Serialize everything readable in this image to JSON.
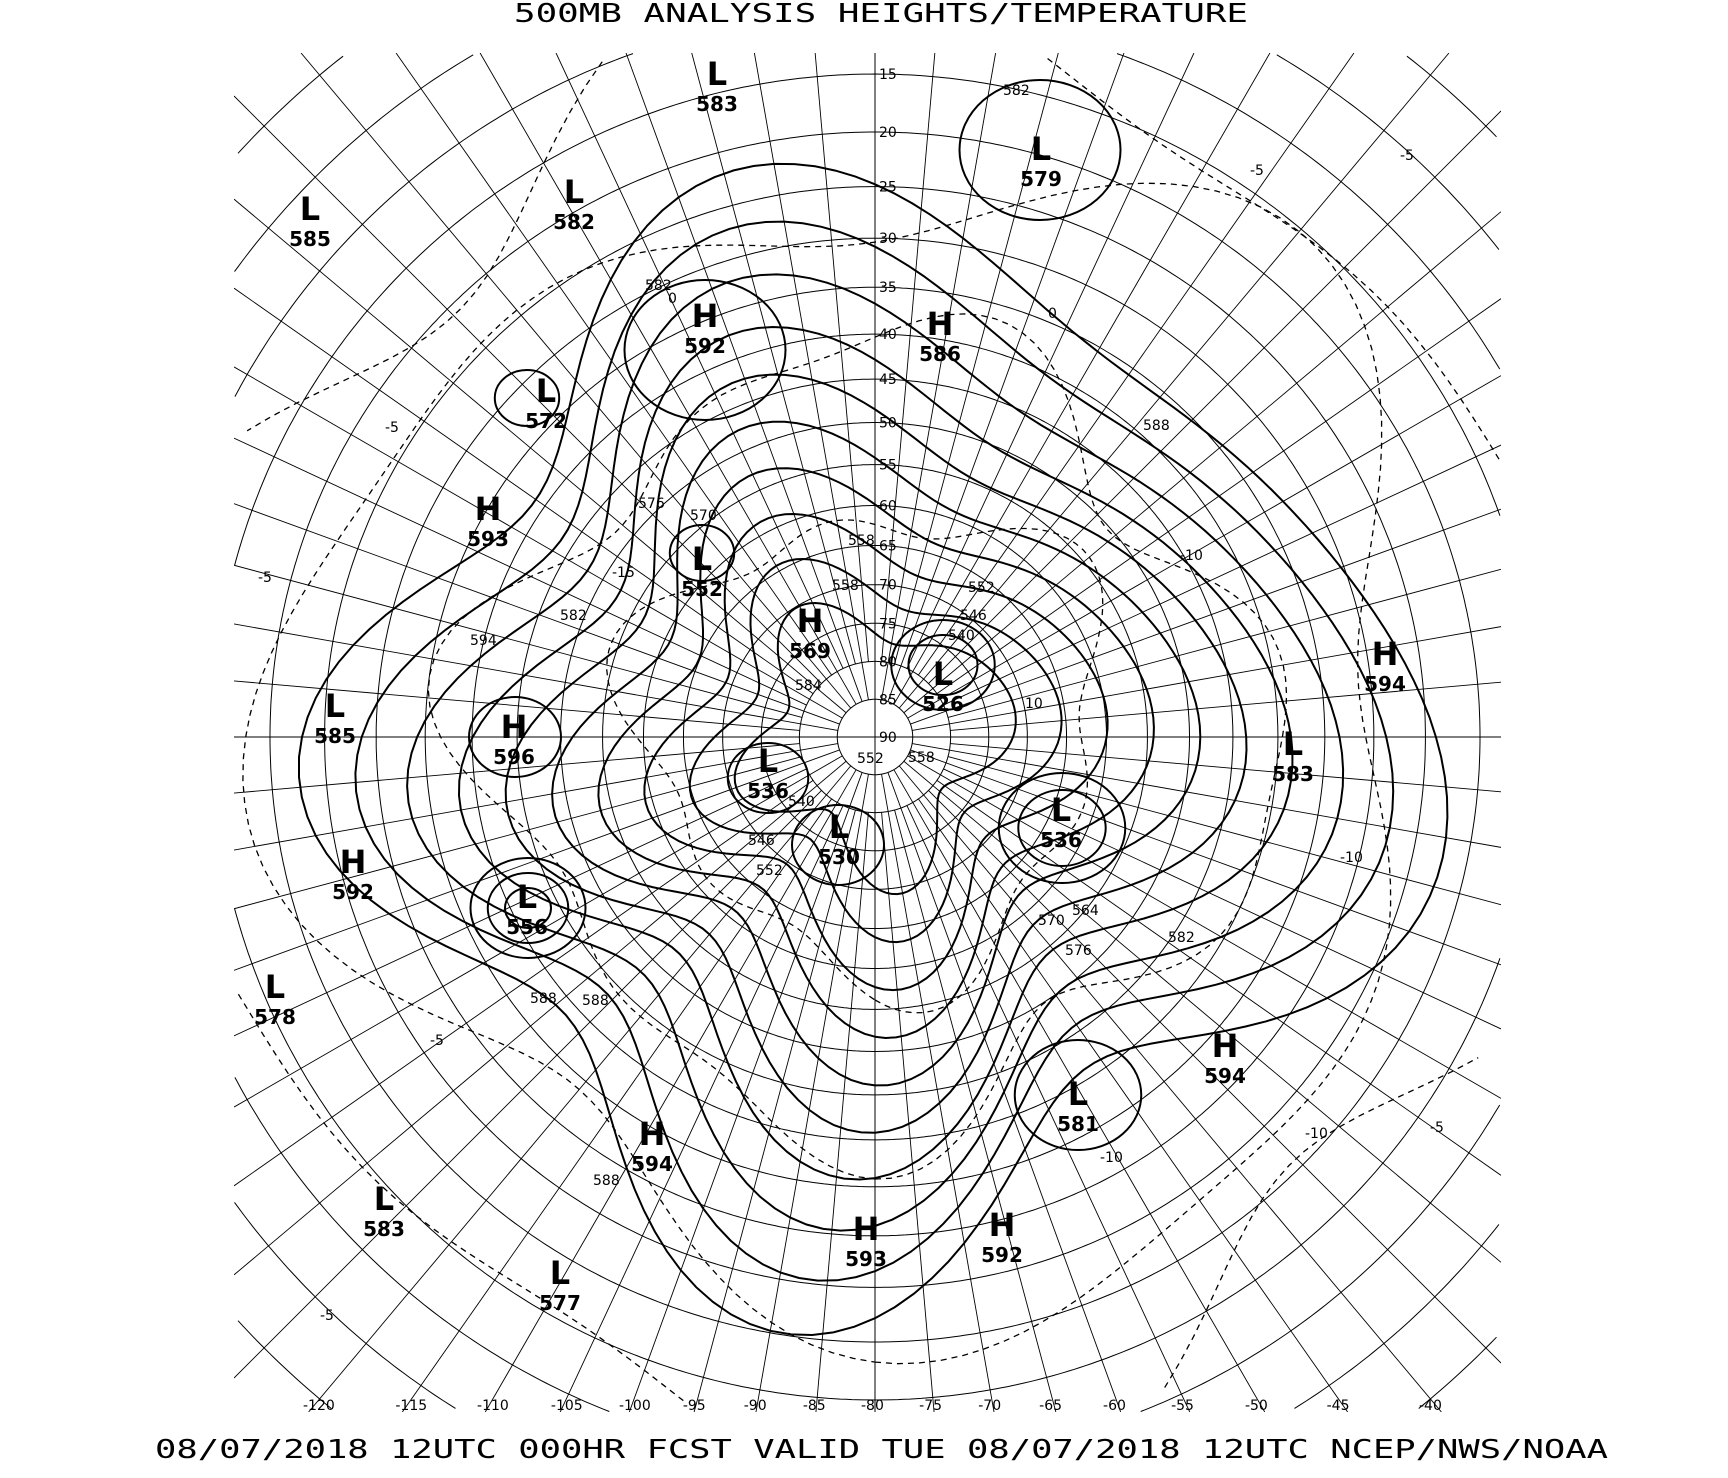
{
  "title": "500MB ANALYSIS  HEIGHTS/TEMPERATURE",
  "footer": "08/07/2018 12UTC 000HR FCST VALID TUE 08/07/2018 12UTC  NCEP/NWS/NOAA",
  "projection": "polar stereographic, north pole",
  "colors": {
    "lines": "#000000",
    "background": "#ffffff"
  },
  "latitude_labels": [
    "15",
    "20",
    "25",
    "30",
    "35",
    "40",
    "45",
    "50",
    "55",
    "60",
    "65",
    "70",
    "75",
    "80",
    "85",
    "90"
  ],
  "longitude_labels": [
    "-120",
    "-115",
    "-110",
    "-105",
    "-100",
    "-95",
    "-90",
    "-85",
    "-80",
    "-75",
    "-70",
    "-65",
    "-60",
    "-55",
    "-50",
    "-45",
    "-40"
  ],
  "pressure_systems": [
    {
      "type": "L",
      "value": "583"
    },
    {
      "type": "L",
      "value": "579"
    },
    {
      "type": "L",
      "value": "585"
    },
    {
      "type": "L",
      "value": "582"
    },
    {
      "type": "H",
      "value": "592"
    },
    {
      "type": "H",
      "value": "586"
    },
    {
      "type": "L",
      "value": "572"
    },
    {
      "type": "H",
      "value": "593"
    },
    {
      "type": "L",
      "value": "552"
    },
    {
      "type": "H",
      "value": "569"
    },
    {
      "type": "L",
      "value": "526"
    },
    {
      "type": "H",
      "value": "594"
    },
    {
      "type": "L",
      "value": "585"
    },
    {
      "type": "H",
      "value": "596"
    },
    {
      "type": "L",
      "value": "583"
    },
    {
      "type": "L",
      "value": "536"
    },
    {
      "type": "L",
      "value": "536"
    },
    {
      "type": "L",
      "value": "530"
    },
    {
      "type": "H",
      "value": "592"
    },
    {
      "type": "L",
      "value": "556"
    },
    {
      "type": "L",
      "value": "578"
    },
    {
      "type": "H",
      "value": "594"
    },
    {
      "type": "L",
      "value": "581"
    },
    {
      "type": "H",
      "value": "594"
    },
    {
      "type": "L",
      "value": "583"
    },
    {
      "type": "H",
      "value": "593"
    },
    {
      "type": "H",
      "value": "592"
    },
    {
      "type": "L",
      "value": "577"
    }
  ],
  "contour_labels": [
    "582",
    "588",
    "588",
    "576",
    "570",
    "582",
    "594",
    "558",
    "558",
    "552",
    "546",
    "540",
    "584",
    "558",
    "552",
    "540",
    "546",
    "552",
    "570",
    "576",
    "564",
    "582",
    "588",
    "588",
    "582",
    "-5",
    "-5",
    "-5",
    "-10",
    "-10",
    "-10",
    "-15",
    "0",
    "0",
    "10",
    "-5",
    "-5",
    "-10",
    "-5",
    "-5"
  ]
}
